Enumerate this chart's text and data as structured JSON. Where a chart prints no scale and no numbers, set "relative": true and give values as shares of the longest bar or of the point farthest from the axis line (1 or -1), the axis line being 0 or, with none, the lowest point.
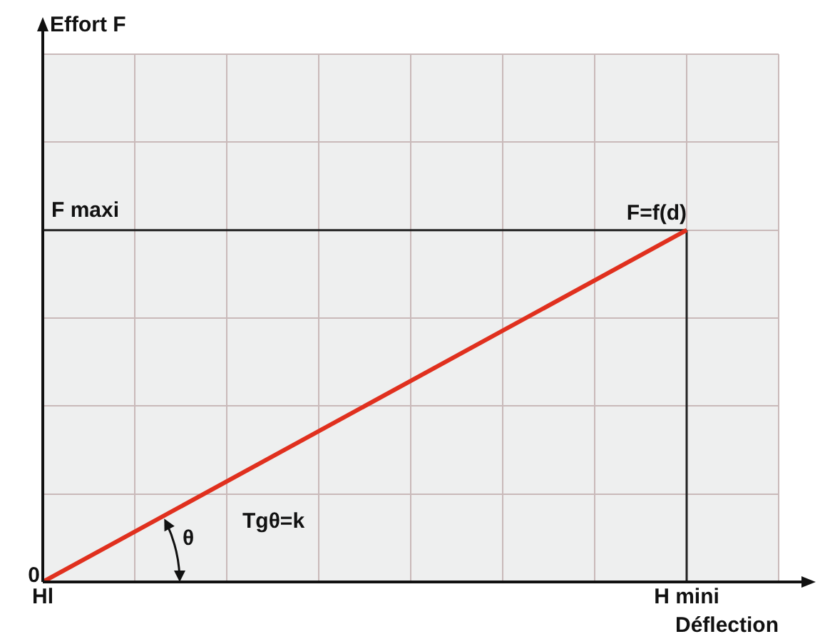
{
  "chart_data": {
    "type": "line",
    "xlabel": "Déflection",
    "categories": [
      "Hl",
      null,
      null,
      null,
      null,
      null,
      null,
      "H mini",
      null
    ],
    "series": [
      {
        "color": "#e0301e",
        "values": [
          0,
          null,
          null,
          null,
          null,
          null,
          null,
          1,
          null
        ]
      }
    ],
    "relative": true,
    "grid": true,
    "legend": false,
    "marker": "none",
    "ref_lines": [
      {
        "axis": "y",
        "value": 1,
        "label": "F maxi",
        "color": "#222222"
      },
      {
        "axis": "x",
        "value": "H mini",
        "color": "#222222"
      }
    ],
    "annotations": [
      "0",
      {
        "text": "F=f(d)",
        "x": "H mini",
        "y": 1
      },
      "θ",
      "Tgθ=k",
      "Effort F"
    ]
  }
}
